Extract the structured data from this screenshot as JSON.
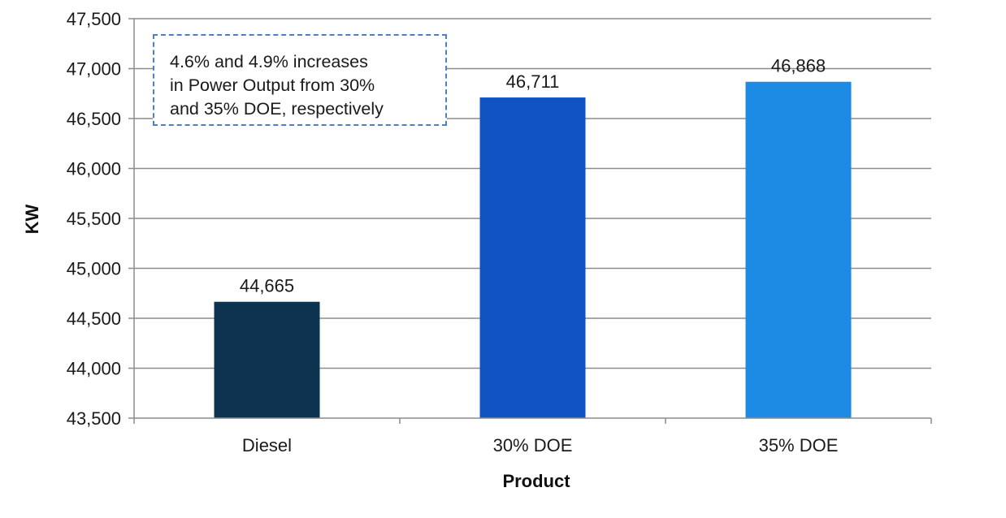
{
  "chart_data": {
    "type": "bar",
    "categories": [
      "Diesel",
      "30% DOE",
      "35% DOE"
    ],
    "values": [
      44665,
      46711,
      46868
    ],
    "data_labels": [
      "44,665",
      "46,711",
      "46,868"
    ],
    "colors": [
      "#0d3350",
      "#0f54c2",
      "#1d8be3"
    ],
    "xlabel": "Product",
    "ylabel": "KW",
    "ylim": [
      43500,
      47500
    ],
    "ytick_step": 500,
    "ytick_labels": [
      "43,500",
      "44,000",
      "44,500",
      "45,000",
      "45,500",
      "46,000",
      "46,500",
      "47,000",
      "47,500"
    ],
    "grid": true,
    "annotation": {
      "lines": [
        "4.6% and 4.9% increases",
        "in Power Output from 30%",
        "and 35% DOE, respectively"
      ]
    }
  }
}
